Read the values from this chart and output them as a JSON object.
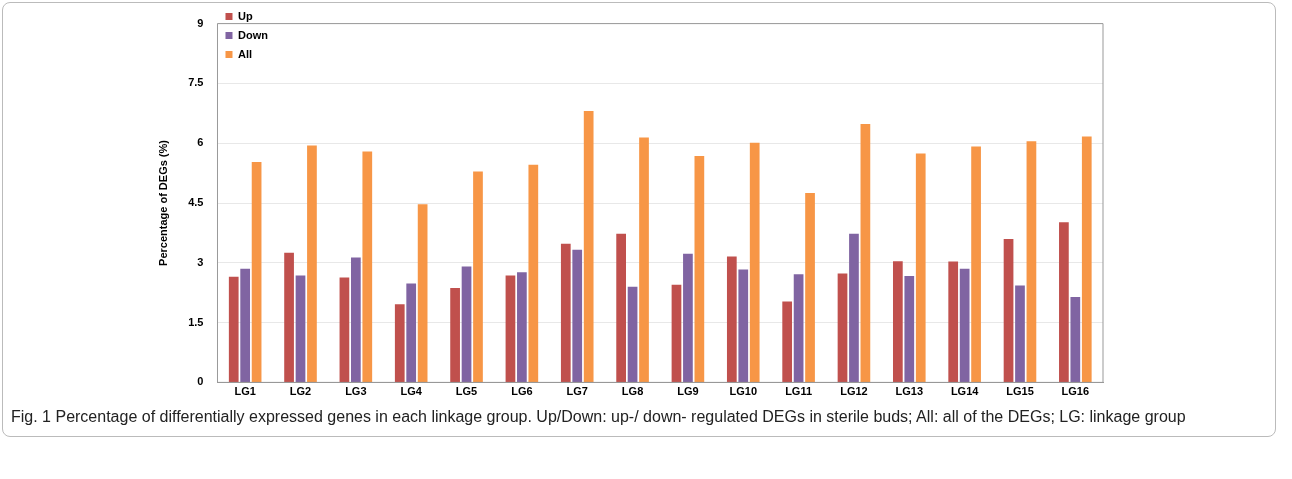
{
  "chart_data": {
    "type": "bar",
    "ylabel": "Percentage of DEGs (%)",
    "categories": [
      "LG1",
      "LG2",
      "LG3",
      "LG4",
      "LG5",
      "LG6",
      "LG7",
      "LG8",
      "LG9",
      "LG10",
      "LG11",
      "LG12",
      "LG13",
      "LG14",
      "LG15",
      "LG16"
    ],
    "series": [
      {
        "name": "Up",
        "color": "#c0504d",
        "values": [
          2.65,
          3.25,
          2.63,
          1.96,
          2.37,
          2.68,
          3.48,
          3.73,
          2.45,
          3.16,
          2.03,
          2.73,
          3.04,
          3.03,
          3.6,
          4.02
        ]
      },
      {
        "name": "Down",
        "color": "#8064a2",
        "values": [
          2.85,
          2.68,
          3.13,
          2.48,
          2.91,
          2.76,
          3.33,
          2.4,
          3.23,
          2.83,
          2.71,
          3.73,
          2.67,
          2.85,
          2.43,
          2.14
        ]
      },
      {
        "name": "All",
        "color": "#f79646",
        "values": [
          5.53,
          5.94,
          5.79,
          4.47,
          5.29,
          5.46,
          6.81,
          6.14,
          5.68,
          6.01,
          4.75,
          6.48,
          5.74,
          5.92,
          6.05,
          6.17
        ]
      }
    ],
    "ylim": [
      0,
      9
    ],
    "yticks": [
      0,
      1.5,
      3,
      4.5,
      6,
      7.5,
      9
    ],
    "grid": "y",
    "legend": "top left",
    "annotations": [
      "Fig. 1 Percentage of differentially expressed genes in each linkage group. Up/Down: up-/ down- regulated DEGs in sterile buds; All: all of the DEGs; LG: linkage group"
    ]
  }
}
